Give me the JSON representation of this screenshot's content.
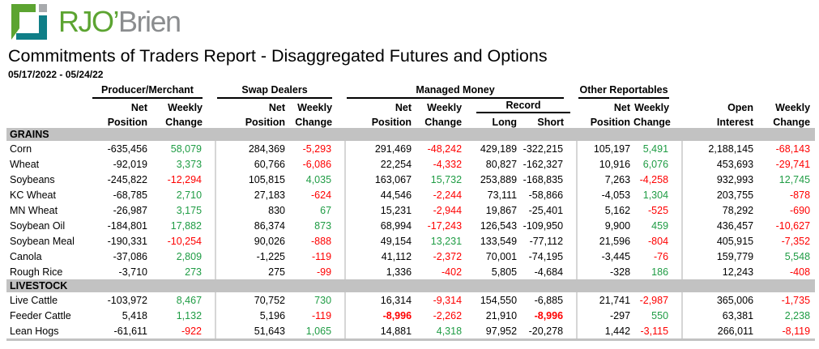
{
  "brand": {
    "logo_primary": "RJO’",
    "logo_secondary": "Brien",
    "colors": {
      "green": "#5ca431",
      "teal": "#0f7e87",
      "gray": "#a8aaad"
    }
  },
  "page": {
    "title": "Commitments of Traders Report - Disaggregated Futures and Options",
    "date_range": "05/17/2022 - 05/24/22"
  },
  "table": {
    "colors": {
      "positive": "#1f9c44",
      "negative": "#fe0000",
      "section_bg": "#c2c2c2",
      "divider": "#d6d6d6"
    },
    "groups": [
      {
        "label": "Producer/Merchant"
      },
      {
        "label": "Swap Dealers"
      },
      {
        "label": "Managed Money"
      },
      {
        "label": "Other Reportables"
      }
    ],
    "subheaders": {
      "net": "Net",
      "position": "Position",
      "weekly": "Weekly",
      "change": "Change",
      "record": "Record",
      "long": "Long",
      "short": "Short",
      "open": "Open",
      "interest": "Interest"
    },
    "columns": [
      {
        "key": "pm-net-position",
        "type": "num"
      },
      {
        "key": "pm-weekly-change",
        "type": "chg",
        "grpEnd": true
      },
      {
        "key": "sd-net-position",
        "type": "num"
      },
      {
        "key": "sd-weekly-change",
        "type": "chg",
        "grpEnd": true
      },
      {
        "key": "mm-net-position",
        "type": "num"
      },
      {
        "key": "mm-weekly-change",
        "type": "chg"
      },
      {
        "key": "record-long",
        "type": "num"
      },
      {
        "key": "record-short",
        "type": "num",
        "grpEnd": true
      },
      {
        "key": "or-net-position",
        "type": "num"
      },
      {
        "key": "or-weekly-change",
        "type": "chg",
        "grpEnd": true
      },
      {
        "key": "open-interest",
        "type": "num"
      },
      {
        "key": "oi-weekly-change",
        "type": "chg",
        "last": true
      }
    ],
    "sections": [
      {
        "label": "GRAINS",
        "rows": [
          {
            "name": "Corn",
            "cells": [
              "-635,456",
              "58,079",
              "284,369",
              "-5,293",
              "291,469",
              "-48,242",
              "429,189",
              "-322,215",
              "105,197",
              "5,491",
              "2,188,145",
              "-68,143"
            ]
          },
          {
            "name": "Wheat",
            "cells": [
              "-92,019",
              "3,373",
              "60,766",
              "-6,086",
              "22,254",
              "-4,332",
              "80,827",
              "-162,327",
              "10,916",
              "6,076",
              "453,693",
              "-29,741"
            ]
          },
          {
            "name": "Soybeans",
            "cells": [
              "-245,822",
              "-12,294",
              "105,815",
              "4,035",
              "163,067",
              "15,732",
              "253,889",
              "-168,835",
              "7,263",
              "-4,258",
              "932,993",
              "12,745"
            ]
          },
          {
            "name": "KC Wheat",
            "cells": [
              "-68,785",
              "2,710",
              "27,183",
              "-624",
              "44,546",
              "-2,244",
              "73,111",
              "-58,866",
              "-4,053",
              "1,304",
              "203,755",
              "-878"
            ]
          },
          {
            "name": "MN Wheat",
            "cells": [
              "-26,987",
              "3,175",
              "830",
              "67",
              "15,231",
              "-2,944",
              "19,867",
              "-25,401",
              "5,162",
              "-525",
              "78,292",
              "-690"
            ]
          },
          {
            "name": "Soybean Oil",
            "cells": [
              "-184,801",
              "17,882",
              "86,374",
              "873",
              "68,994",
              "-17,243",
              "126,543",
              "-109,950",
              "9,900",
              "459",
              "436,457",
              "-10,627"
            ]
          },
          {
            "name": "Soybean Meal",
            "cells": [
              "-190,331",
              "-10,254",
              "90,026",
              "-888",
              "49,154",
              "13,231",
              "133,549",
              "-77,112",
              "21,596",
              "-804",
              "405,915",
              "-7,352"
            ]
          },
          {
            "name": "Canola",
            "cells": [
              "-37,086",
              "2,809",
              "-1,225",
              "-119",
              "41,112",
              "-2,372",
              "70,001",
              "-74,195",
              "-3,445",
              "-76",
              "159,779",
              "5,548"
            ]
          },
          {
            "name": "Rough Rice",
            "cells": [
              "-3,710",
              "273",
              "275",
              "-99",
              "1,336",
              "-402",
              "5,805",
              "-4,684",
              "-328",
              "186",
              "12,243",
              "-408"
            ]
          }
        ]
      },
      {
        "label": "LIVESTOCK",
        "rows": [
          {
            "name": "Live Cattle",
            "cells": [
              "-103,972",
              "8,467",
              "70,752",
              "730",
              "16,314",
              "-9,314",
              "154,550",
              "-6,885",
              "21,741",
              "-2,987",
              "365,006",
              "-1,735"
            ]
          },
          {
            "name": "Feeder Cattle",
            "cells": [
              "5,418",
              "1,132",
              "5,196",
              "-119",
              "-8,996",
              "-2,262",
              "21,910",
              "-8,996",
              "-297",
              "550",
              "63,381",
              "2,238"
            ],
            "highlight": [
              4,
              7
            ]
          },
          {
            "name": "Lean Hogs",
            "cells": [
              "-61,611",
              "-922",
              "51,643",
              "1,065",
              "14,881",
              "4,318",
              "97,952",
              "-20,278",
              "1,442",
              "-3,115",
              "266,011",
              "-8,119"
            ]
          }
        ]
      }
    ]
  }
}
